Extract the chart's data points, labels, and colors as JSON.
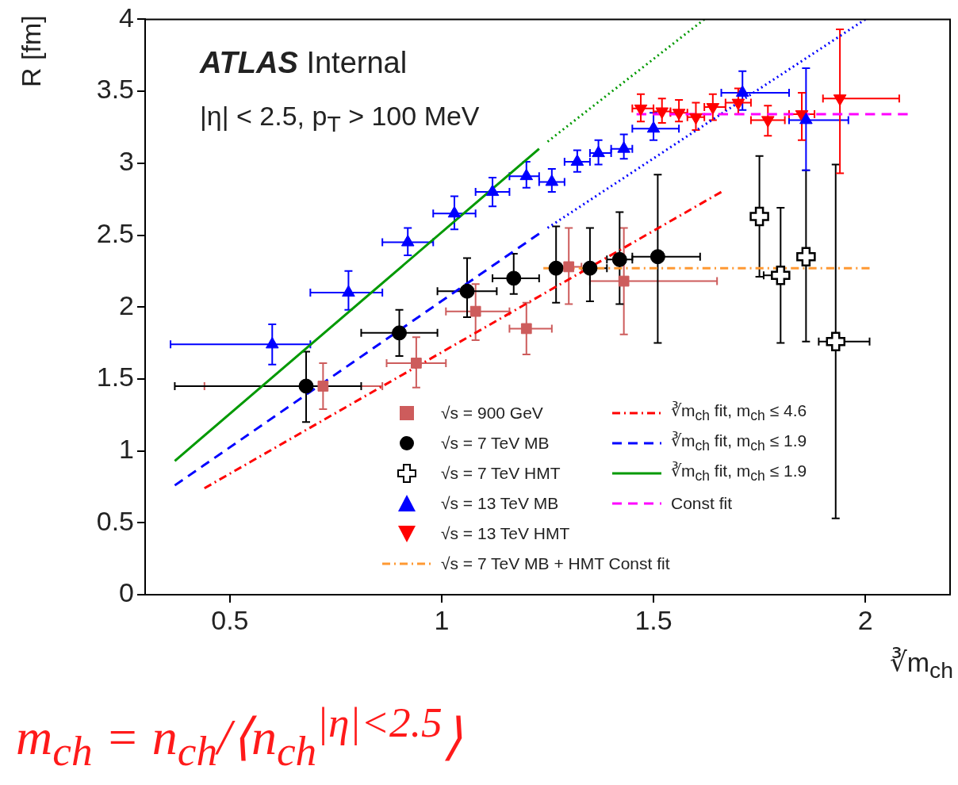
{
  "chart_data": {
    "type": "scatter",
    "xlabel": "∛m$_{ch}$",
    "ylabel": "R [fm]",
    "xlim": [
      0.3,
      2.2
    ],
    "xticks": [
      0.5,
      1,
      1.5,
      2
    ],
    "ylim": [
      0,
      4
    ],
    "yticks": [
      0,
      0.5,
      1,
      1.5,
      2,
      2.5,
      3,
      3.5,
      4
    ],
    "grid": false,
    "legend": "bottom",
    "annotations": [
      "ATLAS Internal",
      "|η| < 2.5, p$_{T}$ > 100 MeV",
      "m$_{ch}$ = n$_{ch}$/⟨n$_{ch}$$^{|η|<2.5}$⟩"
    ],
    "series": [
      {
        "name": "√s = 900 GeV",
        "marker": "square",
        "color": "#cd5c5c",
        "x": [
          0.72,
          0.94,
          1.08,
          1.2,
          1.3,
          1.43
        ],
        "values": [
          1.45,
          1.61,
          1.97,
          1.85,
          2.28,
          2.18
        ],
        "xerrors": [
          [
            0.44,
            0.86
          ],
          [
            0.87,
            1.01
          ],
          [
            1.01,
            1.16
          ],
          [
            1.16,
            1.26
          ],
          [
            1.26,
            1.33
          ],
          [
            1.35,
            1.65
          ]
        ],
        "errors": [
          [
            1.29,
            1.61
          ],
          [
            1.44,
            1.79
          ],
          [
            1.77,
            2.16
          ],
          [
            1.67,
            2.03
          ],
          [
            2.02,
            2.55
          ],
          [
            1.81,
            2.55
          ]
        ]
      },
      {
        "name": "√s = 7 TeV MB",
        "marker": "circle",
        "color": "#000000",
        "x": [
          0.68,
          0.9,
          1.06,
          1.17,
          1.27,
          1.35,
          1.42,
          1.51
        ],
        "values": [
          1.45,
          1.82,
          2.11,
          2.2,
          2.27,
          2.27,
          2.33,
          2.35
        ],
        "xerrors": [
          [
            0.37,
            0.81
          ],
          [
            0.81,
            0.99
          ],
          [
            0.99,
            1.13
          ],
          [
            1.12,
            1.23
          ],
          null,
          [
            1.35,
            1.39
          ],
          [
            1.39,
            1.45
          ],
          [
            1.45,
            1.61
          ]
        ],
        "errors": [
          [
            1.2,
            1.69
          ],
          [
            1.66,
            1.98
          ],
          [
            1.93,
            2.34
          ],
          [
            2.09,
            2.37
          ],
          [
            2.03,
            2.56
          ],
          [
            2.04,
            2.55
          ],
          [
            2.02,
            2.66
          ],
          [
            1.75,
            2.92
          ]
        ]
      },
      {
        "name": "√s = 7 TeV HMT",
        "marker": "cross",
        "color": "#000000",
        "x": [
          1.75,
          1.8,
          1.86,
          1.93
        ],
        "values": [
          2.63,
          2.22,
          2.35,
          1.76
        ],
        "xerrors": [
          null,
          [
            1.76,
            1.82
          ],
          [
            1.85,
            1.88
          ],
          [
            1.89,
            2.01
          ]
        ],
        "errors": [
          [
            2.21,
            3.05
          ],
          [
            1.75,
            2.69
          ],
          [
            1.76,
            2.95
          ],
          [
            0.53,
            2.99
          ]
        ]
      },
      {
        "name": "√s = 13 TeV MB",
        "marker": "triangle",
        "color": "#0000ff",
        "x": [
          0.6,
          0.78,
          0.92,
          1.03,
          1.12,
          1.2,
          1.26,
          1.32,
          1.37,
          1.43,
          1.5,
          1.71,
          1.86
        ],
        "values": [
          1.74,
          2.1,
          2.45,
          2.65,
          2.8,
          2.91,
          2.87,
          3.01,
          3.07,
          3.1,
          3.24,
          3.49,
          3.3
        ],
        "xerrors": [
          [
            0.36,
            0.69
          ],
          [
            0.69,
            0.86
          ],
          [
            0.86,
            0.98
          ],
          [
            0.98,
            1.08
          ],
          [
            1.08,
            1.16
          ],
          [
            1.16,
            1.23
          ],
          [
            1.23,
            1.29
          ],
          [
            1.29,
            1.35
          ],
          [
            1.35,
            1.4
          ],
          [
            1.4,
            1.45
          ],
          [
            1.45,
            1.56
          ],
          [
            1.66,
            1.82
          ],
          [
            1.82,
            1.96
          ]
        ],
        "errors": [
          [
            1.6,
            1.88
          ],
          [
            1.98,
            2.25
          ],
          [
            2.36,
            2.55
          ],
          [
            2.54,
            2.77
          ],
          [
            2.7,
            2.9
          ],
          [
            2.83,
            3.01
          ],
          [
            2.8,
            2.96
          ],
          [
            2.94,
            3.09
          ],
          [
            2.99,
            3.16
          ],
          [
            3.03,
            3.2
          ],
          [
            3.16,
            3.35
          ],
          [
            3.37,
            3.64
          ],
          [
            2.95,
            3.66
          ]
        ]
      },
      {
        "name": "√s = 13 TeV HMT",
        "marker": "triangle-down",
        "color": "#ff0000",
        "x": [
          1.47,
          1.52,
          1.56,
          1.6,
          1.64,
          1.7,
          1.77,
          1.85,
          1.94
        ],
        "values": [
          3.38,
          3.36,
          3.35,
          3.32,
          3.39,
          3.42,
          3.3,
          3.34,
          3.45
        ],
        "xerrors": [
          [
            1.45,
            1.5
          ],
          [
            1.5,
            1.54
          ],
          [
            1.54,
            1.58
          ],
          [
            1.58,
            1.62
          ],
          [
            1.62,
            1.67
          ],
          [
            1.67,
            1.73
          ],
          [
            1.73,
            1.81
          ],
          [
            1.82,
            1.88
          ],
          [
            1.9,
            2.08
          ]
        ],
        "errors": [
          [
            3.29,
            3.48
          ],
          [
            3.28,
            3.45
          ],
          [
            3.29,
            3.44
          ],
          [
            3.23,
            3.42
          ],
          [
            3.3,
            3.48
          ],
          [
            3.34,
            3.52
          ],
          [
            3.19,
            3.4
          ],
          [
            3.16,
            3.49
          ],
          [
            2.93,
            3.93
          ]
        ]
      },
      {
        "name": "√s = 7 TeV MB + HMT Const fit",
        "type": "line",
        "line_style": "dashdot",
        "color": "#ff9933",
        "x": [
          1.24,
          2.01
        ],
        "values": [
          2.27,
          2.27
        ]
      },
      {
        "name": "∛m$_{ch}$ fit, m$_{ch}$ ≤ 4.6",
        "type": "line",
        "line_style": "dashdot",
        "color": "#ff0000",
        "x": [
          0.44,
          1.66
        ],
        "values": [
          0.74,
          2.8
        ]
      },
      {
        "name": "∛m$_{ch}$ fit, m$_{ch}$ ≤ 1.9",
        "type": "line",
        "line_style": "dashed",
        "color": "#0000ff",
        "x": [
          0.37,
          1.23
        ],
        "values": [
          0.76,
          2.51
        ]
      },
      {
        "name": "∛m$_{ch}$ fit, m$_{ch}$ ≤ 1.9",
        "type": "line",
        "line_style": "solid",
        "color": "#009900",
        "x": [
          0.37,
          1.23
        ],
        "values": [
          0.93,
          3.1
        ]
      },
      {
        "name": "Const fit",
        "type": "line",
        "line_style": "dashed",
        "color": "#ff00ff",
        "x": [
          1.46,
          2.1
        ],
        "values": [
          3.34,
          3.34
        ]
      },
      {
        "type": "line",
        "line_style": "dotted",
        "color": "#0000ff",
        "x": [
          1.25,
          2.0
        ],
        "values": [
          2.55,
          4.0
        ]
      },
      {
        "type": "line",
        "line_style": "dotted",
        "color": "#009900",
        "x": [
          1.25,
          1.62
        ],
        "values": [
          3.15,
          4.0
        ]
      }
    ]
  }
}
